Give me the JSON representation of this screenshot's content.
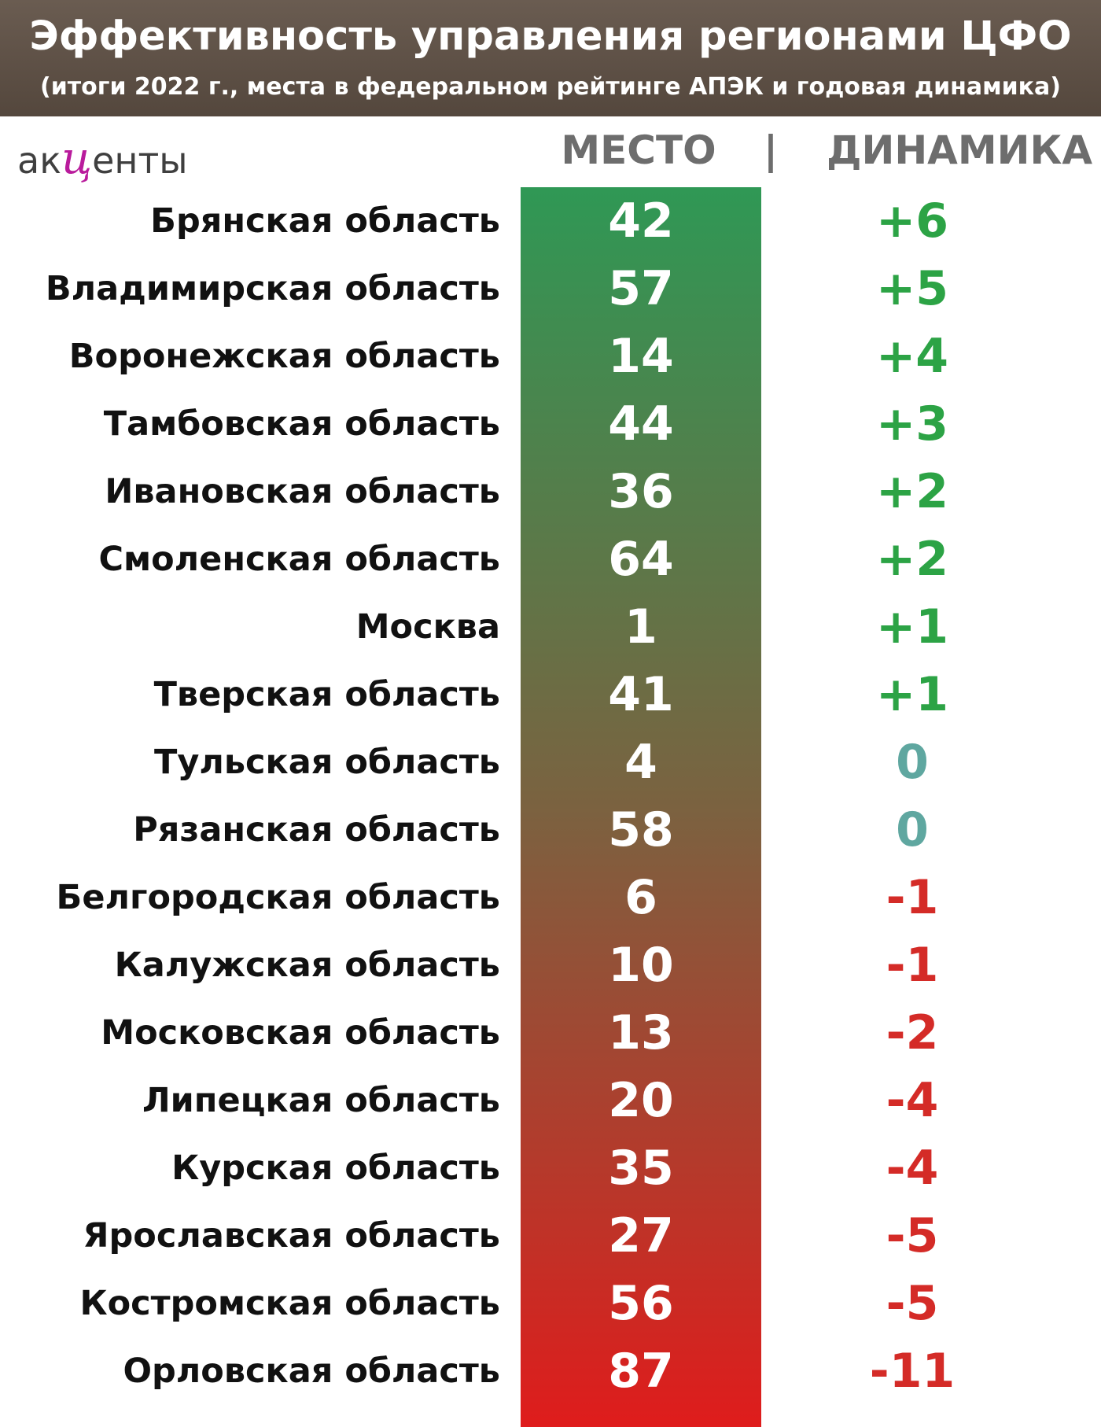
{
  "header": {
    "title": "Эффективность управления регионами ЦФО",
    "subtitle": "(итоги 2022 г., места в федеральном рейтинге АПЭК и годовая динамика)"
  },
  "logo": {
    "left": "ак",
    "mid": "ц",
    "right": "енты"
  },
  "columns": {
    "place": "МЕСТО",
    "separator": "|",
    "dynamics": "ДИНАМИКА"
  },
  "colors": {
    "positive": "#2ca345",
    "zero": "#5fa7a0",
    "negative": "#d42b27",
    "bar_top": "#2f9855",
    "bar_bottom": "#df1c1c"
  },
  "chart_data": {
    "type": "table",
    "title": "Эффективность управления регионами ЦФО",
    "subtitle": "(итоги 2022 г., места в федеральном рейтинге АПЭК и годовая динамика)",
    "columns": [
      "МЕСТО",
      "ДИНАМИКА"
    ],
    "rows": [
      {
        "region": "Брянская область",
        "place": "42",
        "dynamics": "+6"
      },
      {
        "region": "Владимирская область",
        "place": "57",
        "dynamics": "+5"
      },
      {
        "region": "Воронежская область",
        "place": "14",
        "dynamics": "+4"
      },
      {
        "region": "Тамбовская область",
        "place": "44",
        "dynamics": "+3"
      },
      {
        "region": "Ивановская область",
        "place": "36",
        "dynamics": "+2"
      },
      {
        "region": "Смоленская область",
        "place": "64",
        "dynamics": "+2"
      },
      {
        "region": "Москва",
        "place": "1",
        "dynamics": "+1"
      },
      {
        "region": "Тверская область",
        "place": "41",
        "dynamics": "+1"
      },
      {
        "region": "Тульская область",
        "place": "4",
        "dynamics": "0"
      },
      {
        "region": "Рязанская область",
        "place": "58",
        "dynamics": "0"
      },
      {
        "region": "Белгородская область",
        "place": "6",
        "dynamics": "-1"
      },
      {
        "region": "Калужская область",
        "place": "10",
        "dynamics": "-1"
      },
      {
        "region": "Московская область",
        "place": "13",
        "dynamics": "-2"
      },
      {
        "region": "Липецкая область",
        "place": "20",
        "dynamics": "-4"
      },
      {
        "region": "Курская область",
        "place": "35",
        "dynamics": "-4"
      },
      {
        "region": "Ярославская область",
        "place": "27",
        "dynamics": "-5"
      },
      {
        "region": "Костромская область",
        "place": "56",
        "dynamics": "-5"
      },
      {
        "region": "Орловская область",
        "place": "87",
        "dynamics": "-11"
      }
    ]
  }
}
